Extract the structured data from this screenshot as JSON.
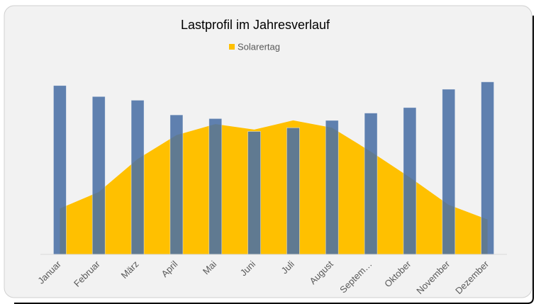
{
  "chart_data": {
    "type": "bar-area",
    "title": "Lastprofil im Jahresverlauf",
    "categories": [
      "Januar",
      "Februar",
      "März",
      "April",
      "Mai",
      "Juni",
      "Juli",
      "August",
      "Septem…",
      "Oktober",
      "November",
      "Dezember"
    ],
    "ylim": [
      0,
      100
    ],
    "legend": "top",
    "series": [
      {
        "type": "bar",
        "color": "#4a6fa5",
        "values": [
          92,
          86,
          84,
          76,
          74,
          67,
          69,
          73,
          77,
          80,
          90,
          94
        ]
      },
      {
        "type": "area",
        "name": "Solarertag",
        "color": "#ffc000",
        "values": [
          25,
          34,
          52,
          65,
          71,
          68,
          73,
          69,
          56,
          42,
          27,
          19
        ]
      }
    ]
  }
}
